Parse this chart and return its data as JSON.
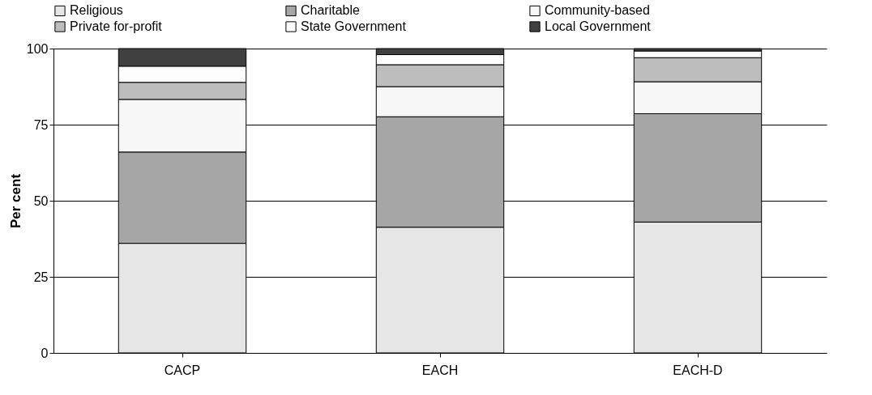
{
  "chart_data": {
    "type": "bar",
    "stacked": true,
    "ylabel": "Per cent",
    "categories": [
      "CACP",
      "EACH",
      "EACH-D"
    ],
    "series": [
      {
        "name": "Religious",
        "color": "#e6e6e6",
        "values": [
          36,
          41.3,
          43.0
        ]
      },
      {
        "name": "Charitable",
        "color": "#a6a6a6",
        "values": [
          30,
          36.3,
          35.6
        ]
      },
      {
        "name": "Community-based",
        "color": "#f7f7f7",
        "values": [
          17.3,
          9.9,
          10.5
        ]
      },
      {
        "name": "Private for-profit",
        "color": "#bdbdbd",
        "values": [
          5.6,
          7.2,
          7.9
        ]
      },
      {
        "name": "State Government",
        "color": "#fdfdfd",
        "values": [
          5.3,
          3.3,
          2.2
        ]
      },
      {
        "name": "Local Government",
        "color": "#404040",
        "values": [
          5.8,
          2.0,
          0.8
        ]
      }
    ],
    "ylim": [
      0,
      100
    ],
    "yticks": [
      0,
      25,
      50,
      75,
      100
    ],
    "grid": "y",
    "legend": "top"
  }
}
